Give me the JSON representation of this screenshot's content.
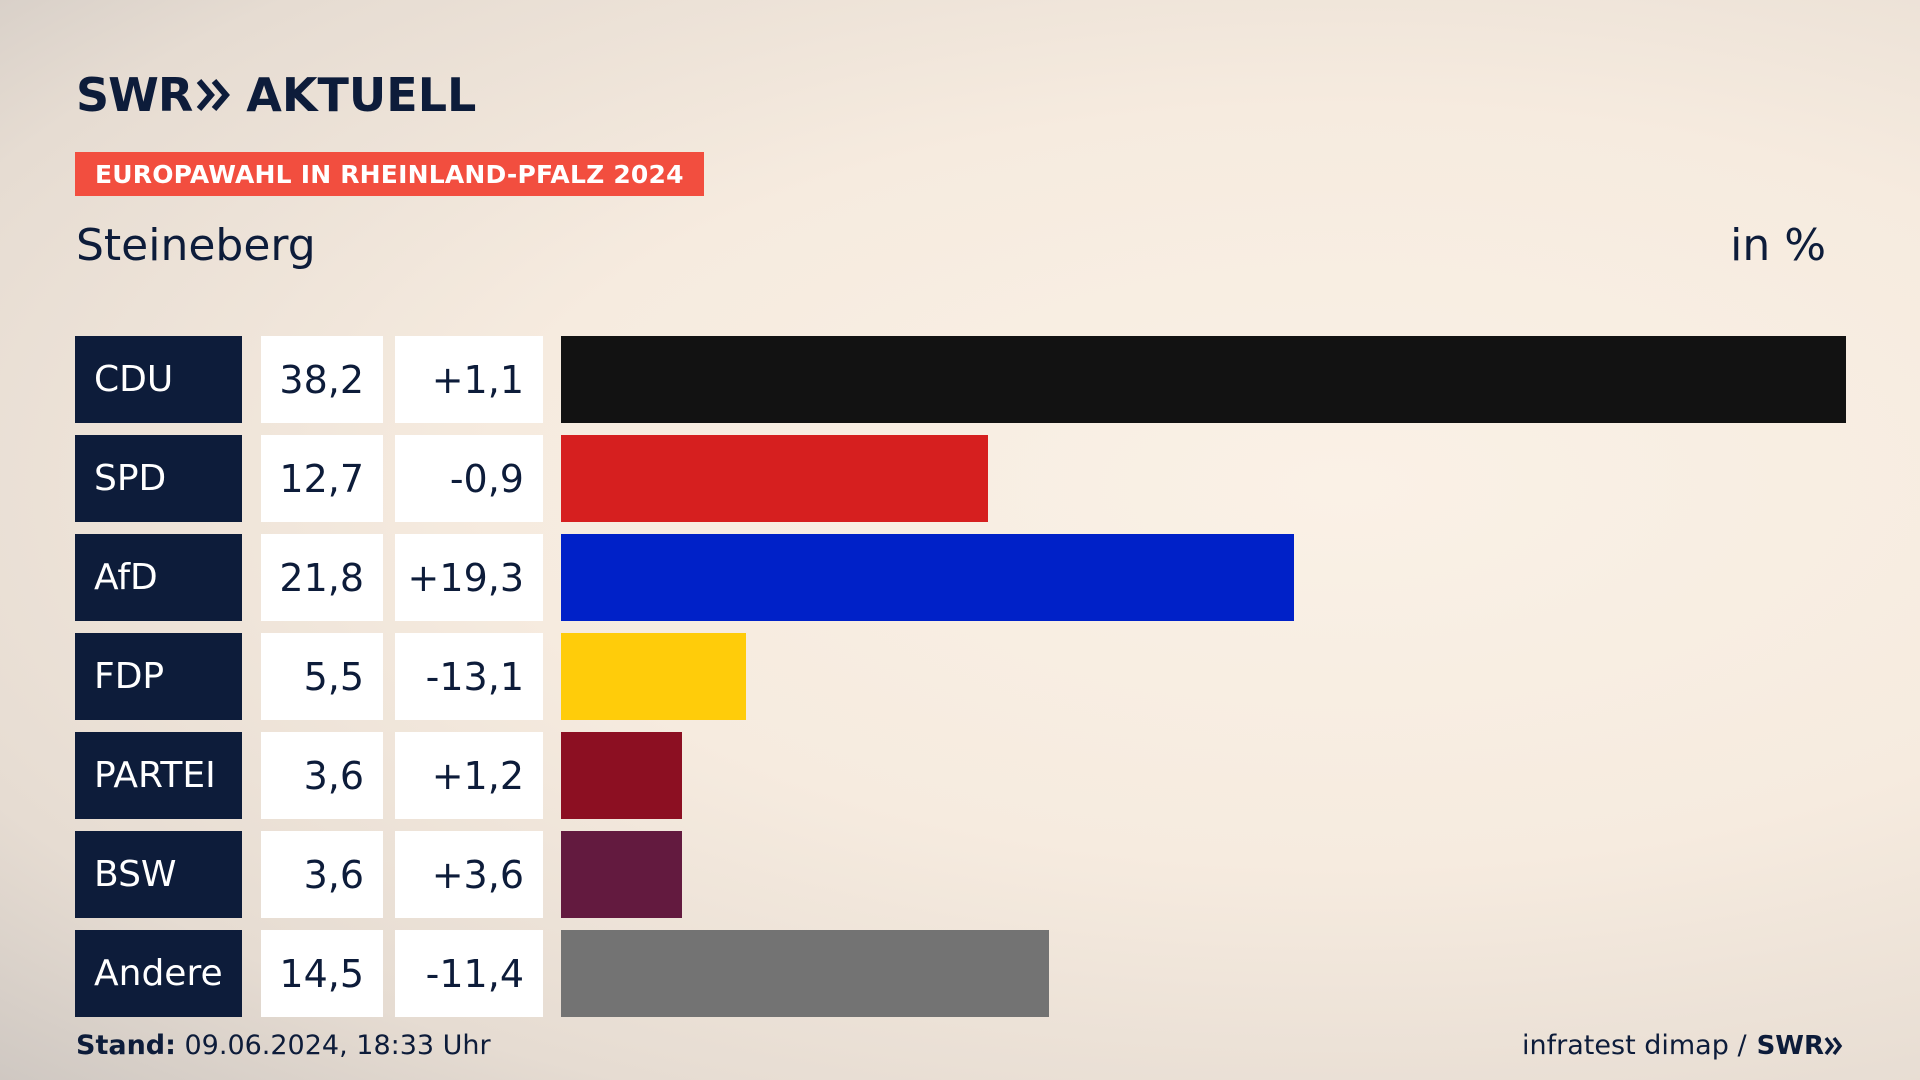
{
  "brand": {
    "swr": "SWR",
    "aktuell": "AKTUELL"
  },
  "tag": "EUROPAWAHL IN RHEINLAND-PFALZ 2024",
  "place": "Steineberg",
  "unit": "in %",
  "footer": {
    "stand_label": "Stand:",
    "stand_value": " 09.06.2024, 18:33 Uhr",
    "source": "infratest dimap /",
    "source_brand": "SWR"
  },
  "chart_data": {
    "type": "bar",
    "orientation": "horizontal",
    "categories": [
      "CDU",
      "SPD",
      "AfD",
      "FDP",
      "PARTEI",
      "BSW",
      "Andere"
    ],
    "values": [
      38.2,
      12.7,
      21.8,
      5.5,
      3.6,
      3.6,
      14.5
    ],
    "value_labels": [
      "38,2",
      "12,7",
      "21,8",
      "5,5",
      "3,6",
      "3,6",
      "14,5"
    ],
    "diff_labels": [
      "+1,1",
      "-0,9",
      "+19,3",
      "-13,1",
      "+1,2",
      "+3,6",
      "-11,4"
    ],
    "colors": [
      "#121212",
      "#d61f1f",
      "#0021c8",
      "#ffcc0a",
      "#8c0f22",
      "#631a3f",
      "#737373"
    ],
    "xlim": [
      0,
      38.2
    ]
  }
}
